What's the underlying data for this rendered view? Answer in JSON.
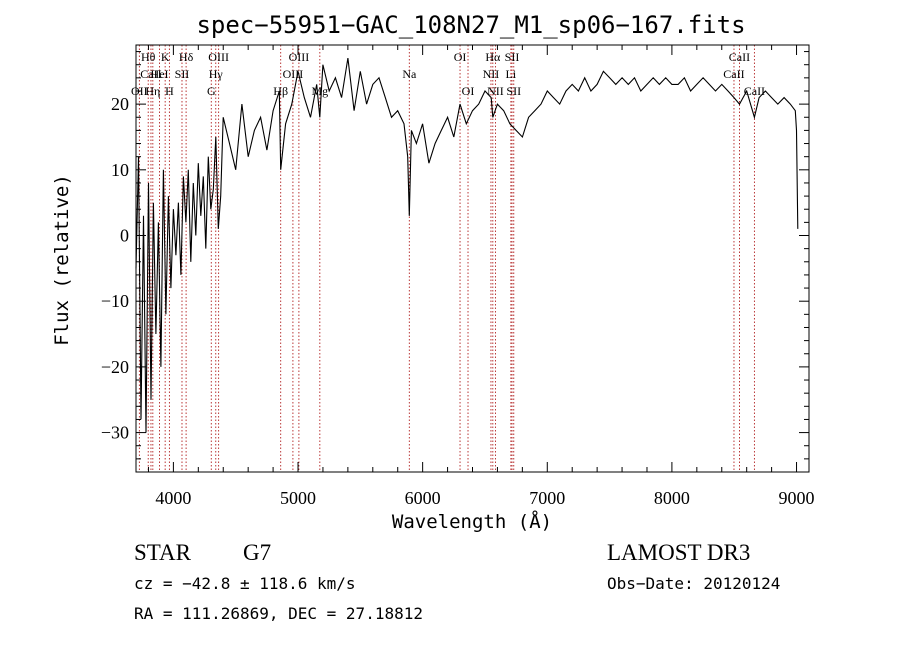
{
  "chart_data": {
    "type": "line",
    "title": "spec−55951−GAC_108N27_M1_sp06−167.fits",
    "xlabel": "Wavelength (Å)",
    "ylabel": "Flux (relative)",
    "xlim": [
      3700,
      9100
    ],
    "ylim": [
      -36,
      29
    ],
    "x_ticks": [
      4000,
      5000,
      6000,
      7000,
      8000,
      9000
    ],
    "x_tick_labels": [
      "4000",
      "5000",
      "6000",
      "7000",
      "8000",
      "9000"
    ],
    "y_ticks": [
      -30,
      -20,
      -10,
      0,
      10,
      20
    ],
    "y_tick_labels": [
      "−30",
      "−20",
      "−10",
      "0",
      "10",
      "20"
    ],
    "grid": false,
    "spectral_lines": [
      {
        "label": "Hθ",
        "wavelength": 3798,
        "row": 1
      },
      {
        "label": "CaII",
        "wavelength": 3820,
        "row": 2
      },
      {
        "label": "OII",
        "wavelength": 3727,
        "row": 3
      },
      {
        "label": "K",
        "wavelength": 3934,
        "row": 1
      },
      {
        "label": "HeI",
        "wavelength": 3889,
        "row": 2
      },
      {
        "label": "Hη",
        "wavelength": 3835,
        "row": 3
      },
      {
        "label": "H",
        "wavelength": 3968,
        "row": 3
      },
      {
        "label": "SII",
        "wavelength": 4069,
        "row": 2
      },
      {
        "label": "Hδ",
        "wavelength": 4102,
        "row": 1
      },
      {
        "label": "OIII",
        "wavelength": 4363,
        "row": 1
      },
      {
        "label": "Hγ",
        "wavelength": 4340,
        "row": 2
      },
      {
        "label": "G",
        "wavelength": 4304,
        "row": 3
      },
      {
        "label": "Hβ",
        "wavelength": 4861,
        "row": 3
      },
      {
        "label": "OIII",
        "wavelength": 5007,
        "row": 1
      },
      {
        "label": "OIII",
        "wavelength": 4959,
        "row": 2
      },
      {
        "label": "Mg",
        "wavelength": 5175,
        "row": 3
      },
      {
        "label": "Na",
        "wavelength": 5893,
        "row": 2
      },
      {
        "label": "OI",
        "wavelength": 6300,
        "row": 1
      },
      {
        "label": "OI",
        "wavelength": 6364,
        "row": 3
      },
      {
        "label": "Hα",
        "wavelength": 6563,
        "row": 1
      },
      {
        "label": "NII",
        "wavelength": 6548,
        "row": 2
      },
      {
        "label": "NII",
        "wavelength": 6584,
        "row": 3
      },
      {
        "label": "SII",
        "wavelength": 6717,
        "row": 1
      },
      {
        "label": "Li",
        "wavelength": 6708,
        "row": 2
      },
      {
        "label": "SII",
        "wavelength": 6731,
        "row": 3
      },
      {
        "label": "CaII",
        "wavelength": 8542,
        "row": 1
      },
      {
        "label": "CaII",
        "wavelength": 8498,
        "row": 2
      },
      {
        "label": "CaII",
        "wavelength": 8662,
        "row": 3
      }
    ],
    "series": [
      {
        "name": "flux",
        "x": [
          3700,
          3720,
          3740,
          3760,
          3780,
          3800,
          3820,
          3840,
          3860,
          3880,
          3900,
          3920,
          3940,
          3960,
          3980,
          4000,
          4020,
          4040,
          4060,
          4080,
          4100,
          4120,
          4140,
          4160,
          4180,
          4200,
          4220,
          4240,
          4260,
          4280,
          4300,
          4320,
          4340,
          4360,
          4380,
          4400,
          4450,
          4500,
          4550,
          4600,
          4650,
          4700,
          4750,
          4800,
          4850,
          4861,
          4900,
          4950,
          5000,
          5050,
          5100,
          5150,
          5175,
          5200,
          5250,
          5300,
          5350,
          5400,
          5450,
          5500,
          5550,
          5600,
          5650,
          5700,
          5750,
          5800,
          5850,
          5880,
          5893,
          5910,
          5950,
          6000,
          6050,
          6100,
          6150,
          6200,
          6250,
          6300,
          6350,
          6400,
          6450,
          6500,
          6550,
          6563,
          6600,
          6650,
          6700,
          6750,
          6800,
          6850,
          6900,
          6950,
          7000,
          7050,
          7100,
          7150,
          7200,
          7250,
          7300,
          7350,
          7400,
          7450,
          7500,
          7550,
          7600,
          7650,
          7700,
          7750,
          7800,
          7850,
          7900,
          7950,
          8000,
          8050,
          8100,
          8150,
          8200,
          8250,
          8300,
          8350,
          8400,
          8450,
          8498,
          8542,
          8600,
          8662,
          8700,
          8750,
          8800,
          8850,
          8900,
          8950,
          8990,
          9000,
          9010
        ],
        "y": [
          -5,
          12,
          -28,
          3,
          -30,
          8,
          -25,
          5,
          -15,
          2,
          -20,
          10,
          -12,
          6,
          -8,
          4,
          -3,
          5,
          -6,
          9,
          2,
          10,
          -4,
          8,
          0,
          11,
          3,
          9,
          -2,
          12,
          4,
          7,
          15,
          1,
          6,
          18,
          14,
          10,
          20,
          12,
          16,
          18,
          13,
          19,
          22,
          10,
          17,
          20,
          25,
          21,
          18,
          23,
          18,
          26,
          22,
          24,
          21,
          27,
          19,
          25,
          20,
          23,
          24,
          21,
          18,
          19,
          17,
          12,
          3,
          16,
          14,
          17,
          11,
          14,
          16,
          18,
          15,
          20,
          17,
          19,
          20,
          22,
          21,
          18,
          20,
          19,
          17,
          16,
          15,
          18,
          19,
          20,
          22,
          21,
          20,
          22,
          23,
          22,
          24,
          22,
          23,
          25,
          24,
          23,
          24,
          23,
          24,
          22,
          23,
          24,
          23,
          24,
          23,
          23,
          24,
          22,
          23,
          24,
          23,
          22,
          23,
          22,
          21,
          20,
          22,
          18,
          21,
          22,
          21,
          20,
          21,
          20,
          19,
          16,
          1
        ]
      }
    ]
  },
  "footer": {
    "object_type": "STAR",
    "subclass": "G7",
    "survey": "LAMOST DR3",
    "cz": "cz = −42.8 ± 118.6 km/s",
    "obs_date": "Obs−Date: 20120124",
    "coords": "RA = 111.26869, DEC =  27.18812"
  }
}
